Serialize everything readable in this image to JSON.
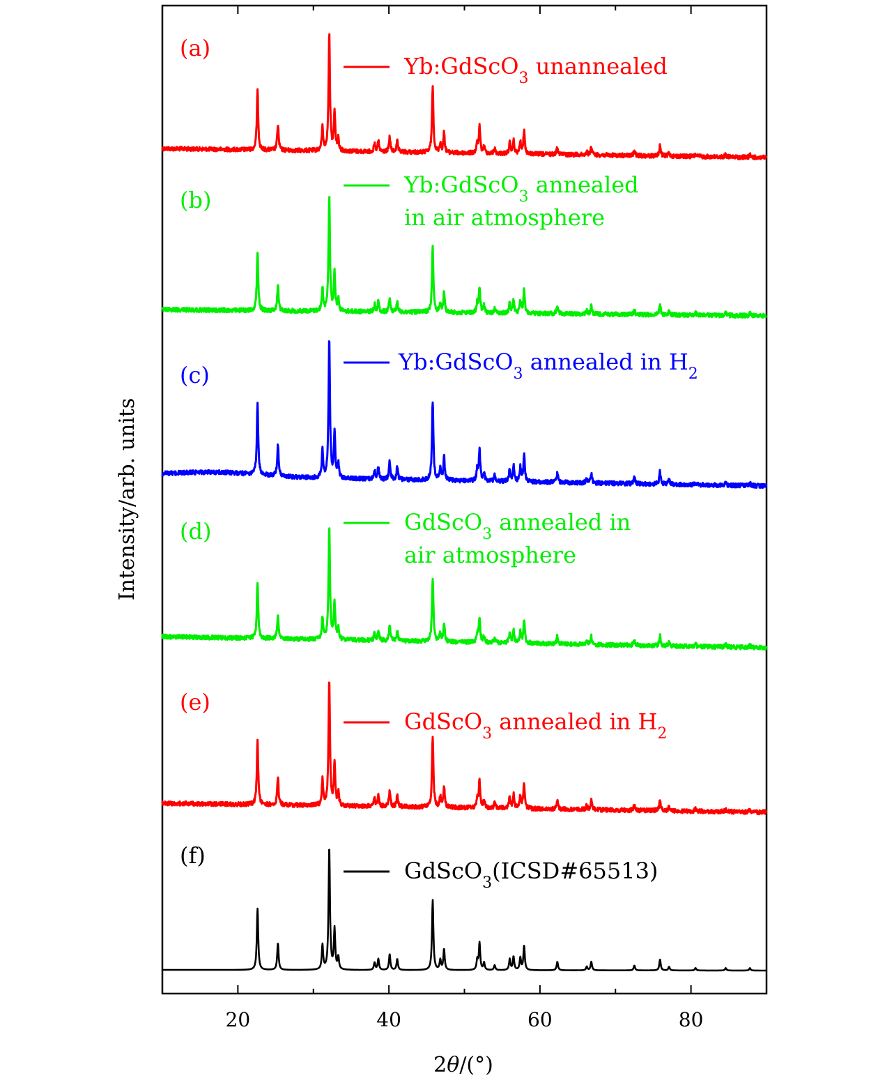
{
  "chart_data": {
    "type": "line",
    "title": "",
    "xlabel": "2θ/(°)",
    "xlabel_parts": {
      "main": "2",
      "italic": "θ",
      "rest": "/(°)"
    },
    "ylabel": "Intensity/arb. units",
    "xlim": [
      10,
      90
    ],
    "xticks": [
      20,
      40,
      60,
      80
    ],
    "xtick_labels": [
      "20",
      "40",
      "60",
      "80"
    ],
    "grid": false,
    "legend": "inline, right of each panel tag",
    "peaks": [
      [
        22.6,
        0.5
      ],
      [
        25.3,
        0.22
      ],
      [
        31.2,
        0.2
      ],
      [
        32.1,
        1.0
      ],
      [
        32.8,
        0.33
      ],
      [
        33.3,
        0.1
      ],
      [
        38.1,
        0.06
      ],
      [
        38.6,
        0.09
      ],
      [
        40.1,
        0.13
      ],
      [
        41.1,
        0.09
      ],
      [
        45.8,
        0.57
      ],
      [
        46.8,
        0.08
      ],
      [
        47.3,
        0.17
      ],
      [
        51.7,
        0.08
      ],
      [
        52.0,
        0.22
      ],
      [
        52.6,
        0.06
      ],
      [
        54.0,
        0.04
      ],
      [
        56.0,
        0.09
      ],
      [
        56.5,
        0.11
      ],
      [
        57.4,
        0.1
      ],
      [
        57.9,
        0.2
      ],
      [
        62.3,
        0.07
      ],
      [
        66.2,
        0.03
      ],
      [
        66.8,
        0.07
      ],
      [
        72.5,
        0.04
      ],
      [
        75.9,
        0.09
      ],
      [
        77.1,
        0.03
      ],
      [
        80.6,
        0.02
      ],
      [
        84.6,
        0.02
      ],
      [
        87.8,
        0.02
      ]
    ],
    "series": [
      {
        "id": "a",
        "tag": "(a)",
        "legend_lines": [
          "Yb:GdScO3 unannealed"
        ],
        "color": "#ff0000"
      },
      {
        "id": "b",
        "tag": "(b)",
        "legend_lines": [
          "Yb:GdScO3 annealed",
          "in air atmosphere"
        ],
        "color": "#00ee00"
      },
      {
        "id": "c",
        "tag": "(c)",
        "legend_lines": [
          "Yb:GdScO3 annealed in H2"
        ],
        "color": "#0000ff"
      },
      {
        "id": "d",
        "tag": "(d)",
        "legend_lines": [
          "GdScO3 annealed in",
          "air atmosphere"
        ],
        "color": "#00ee00"
      },
      {
        "id": "e",
        "tag": "(e)",
        "legend_lines": [
          "GdScO3 annealed in H2"
        ],
        "color": "#ff0000"
      },
      {
        "id": "f",
        "tag": "(f)",
        "legend_lines": [
          "GdScO3(ICSD#65513)"
        ],
        "color": "#000000"
      }
    ]
  }
}
